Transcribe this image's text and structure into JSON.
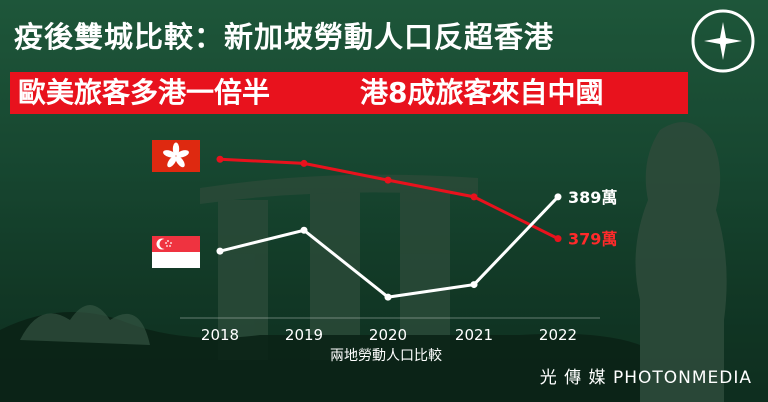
{
  "header": {
    "title": "疫後雙城比較：新加坡勞動人口反超香港",
    "sub_left": "歐美旅客多港一倍半",
    "sub_right": "港8成旅客來自中國"
  },
  "footer": {
    "brand": "光 傳 媒 PHOTONMEDIA"
  },
  "icons": [
    "hong-kong-flag-icon",
    "singapore-flag-icon",
    "photonmedia-logo-icon"
  ],
  "colors": {
    "accent_red": "#e8121d",
    "hk_line": "#e8121d",
    "sg_line": "#ffffff"
  },
  "chart_data": {
    "type": "line",
    "title": "",
    "xlabel": "兩地勞動人口比較",
    "ylabel": "",
    "x": [
      "2018",
      "2019",
      "2020",
      "2021",
      "2022"
    ],
    "ylim": [
      360,
      405
    ],
    "series": [
      {
        "key": "hk",
        "flag": "hong-kong",
        "values": [
          398,
          397,
          393,
          389,
          379
        ],
        "end_label": "379萬"
      },
      {
        "key": "sg",
        "flag": "singapore",
        "values": [
          376,
          381,
          365,
          368,
          389
        ],
        "end_label": "389萬"
      }
    ],
    "grid": false
  }
}
